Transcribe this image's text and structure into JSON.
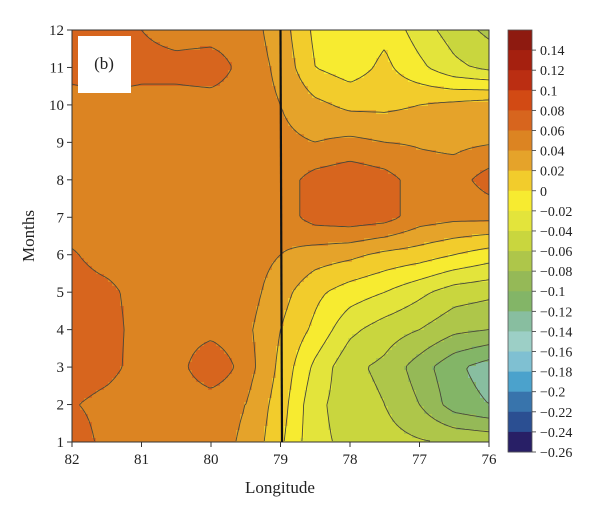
{
  "chart_data": {
    "type": "heatmap",
    "panel_label": "(b)",
    "xlabel": "Longitude",
    "ylabel": "Months",
    "x_ticks": [
      82,
      81,
      80,
      79,
      78,
      77,
      76
    ],
    "x_tick_labels": [
      "82",
      "81",
      "80",
      "79",
      "78",
      "77",
      "76"
    ],
    "y_ticks": [
      1,
      2,
      3,
      4,
      5,
      6,
      7,
      8,
      9,
      10,
      11,
      12
    ],
    "y_tick_labels": [
      "1",
      "2",
      "3",
      "4",
      "5",
      "6",
      "7",
      "8",
      "9",
      "10",
      "11",
      "12"
    ],
    "xlim": [
      82,
      76
    ],
    "ylim": [
      1,
      12
    ],
    "grid": false,
    "vertical_line": {
      "x": 79
    },
    "colorbar": {
      "labels": [
        "0.14",
        "0.12",
        "0.1",
        "0.08",
        "0.06",
        "0.04",
        "0.02",
        "0",
        "−0.02",
        "−0.04",
        "−0.06",
        "−0.08",
        "−0.1",
        "−0.12",
        "−0.14",
        "−0.16",
        "−0.18",
        "−0.2",
        "−0.22",
        "−0.24",
        "−0.26"
      ],
      "levels": [
        0.14,
        0.12,
        0.1,
        0.08,
        0.06,
        0.04,
        0.02,
        0,
        -0.02,
        -0.04,
        -0.06,
        -0.08,
        -0.1,
        -0.12,
        -0.14,
        -0.16,
        -0.18,
        -0.2,
        -0.22,
        -0.24,
        -0.26
      ],
      "colors": [
        "#8e1a10",
        "#a5200f",
        "#bb2e12",
        "#d24a14",
        "#d7651e",
        "#dc8422",
        "#e5a32a",
        "#f2cc2c",
        "#f7eb30",
        "#e3e43b",
        "#c9d63e",
        "#aec64a",
        "#95b957",
        "#83b567",
        "#88bea0",
        "#9ccfc6",
        "#7fc0d2",
        "#4ba2cc",
        "#3874ac",
        "#2b4f92",
        "#281f66"
      ]
    },
    "grid_lons": [
      82,
      81.5,
      81,
      80.5,
      80,
      79.5,
      79,
      78.5,
      78,
      77.5,
      77,
      76.5,
      76
    ],
    "grid_months": [
      1,
      2,
      3,
      4,
      5,
      6,
      7,
      8,
      9,
      10,
      11,
      12
    ],
    "values": [
      [
        0.075,
        0.052,
        0.045,
        0.045,
        0.045,
        0.038,
        0.004,
        -0.035,
        -0.045,
        -0.052,
        -0.058,
        -0.062,
        -0.065
      ],
      [
        0.062,
        0.052,
        0.045,
        0.045,
        0.045,
        0.04,
        0.01,
        -0.035,
        -0.05,
        -0.06,
        -0.08,
        -0.11,
        -0.12
      ],
      [
        0.075,
        0.068,
        0.05,
        0.05,
        0.08,
        0.05,
        0.015,
        -0.025,
        -0.055,
        -0.065,
        -0.09,
        -0.115,
        -0.13
      ],
      [
        0.068,
        0.068,
        0.052,
        0.05,
        0.052,
        0.045,
        0.02,
        -0.005,
        -0.035,
        -0.05,
        -0.06,
        -0.075,
        -0.08
      ],
      [
        0.068,
        0.065,
        0.052,
        0.05,
        0.05,
        0.05,
        0.028,
        0.005,
        -0.01,
        -0.02,
        -0.035,
        -0.05,
        -0.055
      ],
      [
        0.062,
        0.052,
        0.05,
        0.05,
        0.05,
        0.05,
        0.04,
        0.03,
        0.025,
        0.015,
        0.01,
        0.0,
        -0.01
      ],
      [
        0.05,
        0.05,
        0.05,
        0.05,
        0.05,
        0.05,
        0.05,
        0.068,
        0.072,
        0.068,
        0.05,
        0.045,
        0.045
      ],
      [
        0.05,
        0.05,
        0.05,
        0.05,
        0.05,
        0.05,
        0.05,
        0.068,
        0.075,
        0.068,
        0.05,
        0.05,
        0.07
      ],
      [
        0.05,
        0.05,
        0.05,
        0.05,
        0.05,
        0.05,
        0.045,
        0.04,
        0.045,
        0.04,
        0.038,
        0.035,
        0.038
      ],
      [
        0.05,
        0.05,
        0.05,
        0.05,
        0.05,
        0.05,
        0.04,
        0.025,
        0.015,
        0.015,
        0.02,
        0.025,
        0.03
      ],
      [
        0.068,
        0.075,
        0.068,
        0.068,
        0.072,
        0.052,
        0.035,
        0.0,
        -0.01,
        0.005,
        -0.015,
        -0.035,
        -0.045
      ],
      [
        0.065,
        0.065,
        0.06,
        0.05,
        0.05,
        0.05,
        0.03,
        -0.005,
        -0.015,
        -0.005,
        -0.03,
        -0.05,
        -0.065
      ]
    ]
  }
}
